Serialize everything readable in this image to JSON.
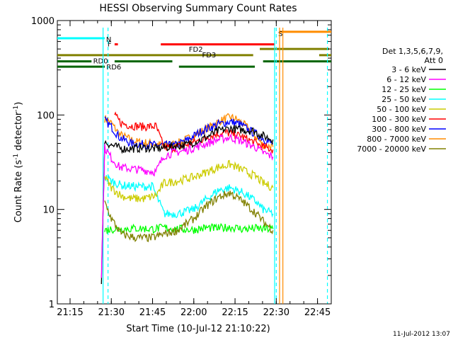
{
  "chart_data": {
    "type": "line",
    "title": "HESSI Observing Summary Count Rates",
    "xlabel": "Start Time (10-Jul-12 21:10:22)",
    "ylabel_main": "Count Rate (s",
    "ylabel_sup": "-1",
    "ylabel_mid": " detector",
    "ylabel_sup2": "-1",
    "ylabel_end": ")",
    "y_scale": "log",
    "xlim": [
      21.1728,
      22.8333
    ],
    "ylim": [
      1,
      1000
    ],
    "x_ticks": [
      {
        "value": 21.25,
        "label": "21:15"
      },
      {
        "value": 21.5,
        "label": "21:30"
      },
      {
        "value": 21.75,
        "label": "21:45"
      },
      {
        "value": 22.0,
        "label": "22:00"
      },
      {
        "value": 22.25,
        "label": "22:15"
      },
      {
        "value": 22.5,
        "label": "22:30"
      },
      {
        "value": 22.75,
        "label": "22:45"
      }
    ],
    "y_ticks": [
      {
        "value": 1,
        "label": "1"
      },
      {
        "value": 10,
        "label": "10"
      },
      {
        "value": 100,
        "label": "100"
      },
      {
        "value": 1000,
        "label": "1000"
      }
    ],
    "legend": {
      "placement": "right",
      "header": [
        "Det 1,3,5,6,7,9,",
        "Att 0"
      ],
      "entries": [
        {
          "label": "3 - 6 keV",
          "color": "#000000"
        },
        {
          "label": "6 - 12 keV",
          "color": "#ff00ff"
        },
        {
          "label": "12 - 25 keV",
          "color": "#00ff00"
        },
        {
          "label": "25 - 50 keV",
          "color": "#00ffff"
        },
        {
          "label": "50 - 100 keV",
          "color": "#cccc00"
        },
        {
          "label": "100 - 300 keV",
          "color": "#ff0000"
        },
        {
          "label": "300 - 800 keV",
          "color": "#0000ff"
        },
        {
          "label": "800 - 7000 keV",
          "color": "#ff8c00"
        },
        {
          "label": "7000 - 20000 keV",
          "color": "#808000"
        }
      ]
    },
    "series": [
      {
        "name": "800 - 7000 keV",
        "color": "#ff8c00",
        "data": [
          [
            21.46,
            92
          ],
          [
            21.5,
            82
          ],
          [
            21.55,
            62
          ],
          [
            21.65,
            52
          ],
          [
            21.75,
            50
          ],
          [
            21.82,
            47
          ],
          [
            21.9,
            50
          ],
          [
            22.0,
            60
          ],
          [
            22.08,
            72
          ],
          [
            22.15,
            85
          ],
          [
            22.22,
            95
          ],
          [
            22.26,
            90
          ],
          [
            22.32,
            75
          ],
          [
            22.38,
            58
          ],
          [
            22.42,
            48
          ],
          [
            22.48,
            46
          ]
        ]
      },
      {
        "name": "300 - 800 keV",
        "color": "#0000ff",
        "data": [
          [
            21.46,
            88
          ],
          [
            21.5,
            75
          ],
          [
            21.55,
            58
          ],
          [
            21.62,
            50
          ],
          [
            21.75,
            48
          ],
          [
            21.82,
            48
          ],
          [
            21.88,
            47
          ],
          [
            21.95,
            53
          ],
          [
            22.05,
            68
          ],
          [
            22.15,
            80
          ],
          [
            22.22,
            85
          ],
          [
            22.28,
            80
          ],
          [
            22.34,
            68
          ],
          [
            22.4,
            60
          ],
          [
            22.45,
            52
          ],
          [
            22.48,
            50
          ]
        ]
      },
      {
        "name": "100 - 300 keV",
        "color": "#ff0000",
        "data": [
          [
            21.52,
            98
          ],
          [
            21.56,
            82
          ],
          [
            21.62,
            77
          ],
          [
            21.7,
            75
          ],
          [
            21.77,
            76
          ],
          [
            21.82,
            45
          ],
          [
            21.88,
            45
          ],
          [
            21.95,
            48
          ],
          [
            22.05,
            55
          ],
          [
            22.12,
            62
          ],
          [
            22.2,
            65
          ],
          [
            22.28,
            60
          ],
          [
            22.36,
            52
          ],
          [
            22.42,
            46
          ],
          [
            22.48,
            43
          ]
        ]
      },
      {
        "name": "3 - 6 keV",
        "color": "#000000",
        "data": [
          [
            21.44,
            1.6
          ],
          [
            21.46,
            52
          ],
          [
            21.5,
            48
          ],
          [
            21.56,
            44
          ],
          [
            21.62,
            44
          ],
          [
            21.7,
            45
          ],
          [
            21.77,
            44
          ],
          [
            21.82,
            45
          ],
          [
            21.88,
            47
          ],
          [
            21.95,
            48
          ],
          [
            22.05,
            55
          ],
          [
            22.15,
            68
          ],
          [
            22.22,
            72
          ],
          [
            22.28,
            70
          ],
          [
            22.36,
            68
          ],
          [
            22.42,
            60
          ],
          [
            22.48,
            55
          ]
        ]
      },
      {
        "name": "6 - 12 keV",
        "color": "#ff00ff",
        "data": [
          [
            21.44,
            2
          ],
          [
            21.46,
            45
          ],
          [
            21.5,
            35
          ],
          [
            21.55,
            28
          ],
          [
            21.62,
            27
          ],
          [
            21.7,
            26
          ],
          [
            21.77,
            25
          ],
          [
            21.82,
            37
          ],
          [
            21.88,
            40
          ],
          [
            21.95,
            42
          ],
          [
            22.05,
            48
          ],
          [
            22.15,
            55
          ],
          [
            22.22,
            58
          ],
          [
            22.3,
            52
          ],
          [
            22.38,
            45
          ],
          [
            22.42,
            40
          ],
          [
            22.48,
            36
          ]
        ]
      },
      {
        "name": "25 - 50 keV",
        "color": "#00ffff",
        "data": [
          [
            21.46,
            22
          ],
          [
            21.5,
            20
          ],
          [
            21.56,
            18
          ],
          [
            21.65,
            17.5
          ],
          [
            21.75,
            17.5
          ],
          [
            21.82,
            9
          ],
          [
            21.9,
            9
          ],
          [
            22.0,
            10
          ],
          [
            22.08,
            13
          ],
          [
            22.15,
            16
          ],
          [
            22.22,
            17
          ],
          [
            22.3,
            15
          ],
          [
            22.38,
            12
          ],
          [
            22.42,
            10
          ],
          [
            22.48,
            9
          ]
        ]
      },
      {
        "name": "50 - 100 keV",
        "color": "#cccc00",
        "data": [
          [
            21.46,
            22
          ],
          [
            21.5,
            17
          ],
          [
            21.56,
            14
          ],
          [
            21.62,
            13
          ],
          [
            21.7,
            13
          ],
          [
            21.77,
            14
          ],
          [
            21.82,
            19
          ],
          [
            21.9,
            20
          ],
          [
            22.0,
            22
          ],
          [
            22.08,
            25
          ],
          [
            22.15,
            28
          ],
          [
            22.22,
            30
          ],
          [
            22.3,
            26
          ],
          [
            22.38,
            22
          ],
          [
            22.42,
            19
          ],
          [
            22.48,
            17
          ]
        ]
      },
      {
        "name": "12 - 25 keV",
        "color": "#00ff00",
        "data": [
          [
            21.46,
            6
          ],
          [
            21.5,
            6.2
          ],
          [
            21.56,
            6.2
          ],
          [
            21.65,
            6.3
          ],
          [
            21.75,
            6.2
          ],
          [
            21.82,
            6.4
          ],
          [
            21.9,
            6.2
          ],
          [
            22.0,
            6.1
          ],
          [
            22.08,
            6.4
          ],
          [
            22.15,
            6.3
          ],
          [
            22.22,
            6.5
          ],
          [
            22.3,
            6.2
          ],
          [
            22.38,
            6.3
          ],
          [
            22.42,
            6.2
          ],
          [
            22.48,
            6.2
          ]
        ]
      },
      {
        "name": "7000 - 20000 keV",
        "color": "#808000",
        "data": [
          [
            21.46,
            12
          ],
          [
            21.5,
            8
          ],
          [
            21.56,
            5.5
          ],
          [
            21.65,
            5
          ],
          [
            21.75,
            5
          ],
          [
            21.82,
            5.5
          ],
          [
            21.9,
            6
          ],
          [
            22.0,
            8
          ],
          [
            22.08,
            11
          ],
          [
            22.15,
            13.5
          ],
          [
            22.22,
            15
          ],
          [
            22.3,
            12
          ],
          [
            22.38,
            9
          ],
          [
            22.42,
            7.5
          ],
          [
            22.48,
            6
          ]
        ]
      }
    ],
    "flag_bars": [
      {
        "label": "N",
        "color": "#00ffff",
        "y": 650,
        "segments": [
          [
            21.1728,
            21.46
          ]
        ]
      },
      {
        "label": "S",
        "color": "#ff8c00",
        "y": 760,
        "segments": [
          [
            22.52,
            22.8333
          ]
        ]
      },
      {
        "label": "F",
        "color": "#ff0000",
        "y": 560,
        "segments": [
          [
            21.52,
            21.54
          ],
          [
            21.8,
            22.49
          ]
        ]
      },
      {
        "label": "FD2",
        "color": "#808000",
        "y": 500,
        "segments": [
          [
            22.4,
            22.82
          ]
        ]
      },
      {
        "label": "FD3",
        "color": "#808000",
        "y": 430,
        "segments": [
          [
            21.1728,
            22.36
          ],
          [
            22.76,
            22.8333
          ]
        ]
      },
      {
        "label": "RD0",
        "color": "#006400",
        "y": 370,
        "segments": [
          [
            21.1728,
            21.38
          ],
          [
            21.52,
            21.87
          ],
          [
            22.42,
            22.8333
          ]
        ]
      },
      {
        "label": "RD6",
        "color": "#006400",
        "y": 325,
        "segments": [
          [
            21.1728,
            21.46
          ],
          [
            21.91,
            22.37
          ]
        ]
      }
    ],
    "vertical_markers": [
      {
        "x": 21.45,
        "color": "#00ffff",
        "style": "solid"
      },
      {
        "x": 21.48,
        "color": "#00ffff",
        "style": "dashed"
      },
      {
        "x": 22.49,
        "color": "#00ffff",
        "style": "solid"
      },
      {
        "x": 22.5,
        "color": "#00ffff",
        "style": "dashed"
      },
      {
        "x": 22.52,
        "color": "#ff8c00",
        "style": "solid"
      },
      {
        "x": 22.54,
        "color": "#ff8c00",
        "style": "solid"
      },
      {
        "x": 22.81,
        "color": "#00ffff",
        "style": "dashed"
      }
    ],
    "timestamp": "11-Jul-2012 13:07"
  }
}
